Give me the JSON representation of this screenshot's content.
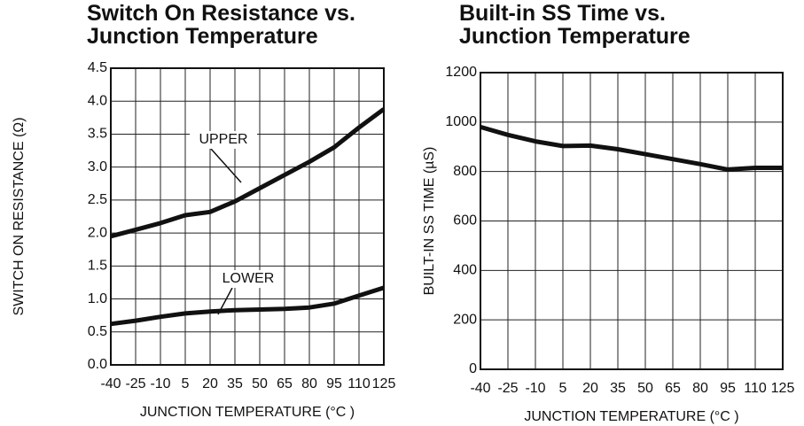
{
  "chart_data": [
    {
      "type": "line",
      "title": "Switch On Resistance vs. Junction Temperature",
      "x_label": "JUNCTION TEMPERATURE (°C )",
      "y_label": "SWITCH ON RESISTANCE (Ω)",
      "x": [
        -40,
        -25,
        -10,
        5,
        20,
        35,
        50,
        65,
        80,
        95,
        110,
        125
      ],
      "series": [
        {
          "name": "UPPER",
          "color": "#111111",
          "values": [
            1.95,
            2.05,
            2.15,
            2.27,
            2.32,
            2.48,
            2.68,
            2.88,
            3.08,
            3.3,
            3.6,
            3.88
          ]
        },
        {
          "name": "LOWER",
          "color": "#111111",
          "values": [
            0.62,
            0.67,
            0.73,
            0.78,
            0.81,
            0.83,
            0.84,
            0.85,
            0.87,
            0.93,
            1.05,
            1.17
          ]
        }
      ],
      "xlim": [
        -40,
        125
      ],
      "xticks": [
        -40,
        -25,
        -10,
        5,
        20,
        35,
        50,
        65,
        80,
        95,
        110,
        125
      ],
      "ylim": [
        0,
        4.5
      ],
      "yticks": [
        {
          "value": 0,
          "label": "0.0"
        },
        0.5,
        {
          "value": 1,
          "label": "1.0"
        },
        1.5,
        {
          "value": 2,
          "label": "2.0"
        },
        2.5,
        {
          "value": 3,
          "label": "3.0"
        },
        3.5,
        {
          "value": 4,
          "label": "4.0"
        },
        4.5
      ],
      "grid": true
    },
    {
      "type": "line",
      "title": "Built-in SS Time vs. Junction Temperature",
      "x_label": "JUNCTION TEMPERATURE (°C )",
      "y_label": "BUILT-IN SS TIME (µS)",
      "x": [
        -40,
        -25,
        -10,
        5,
        20,
        35,
        50,
        65,
        80,
        95,
        110,
        125
      ],
      "series": [
        {
          "name": "SS TIME",
          "color": "#111111",
          "values": [
            980,
            948,
            922,
            903,
            905,
            890,
            870,
            850,
            830,
            808,
            815,
            815
          ]
        }
      ],
      "xlim": [
        -40,
        125
      ],
      "xticks": [
        -40,
        -25,
        -10,
        5,
        20,
        35,
        50,
        65,
        80,
        95,
        110,
        125
      ],
      "ylim": [
        0,
        1200
      ],
      "yticks": [
        0,
        200,
        400,
        600,
        800,
        1000,
        1200
      ],
      "grid": true
    }
  ]
}
